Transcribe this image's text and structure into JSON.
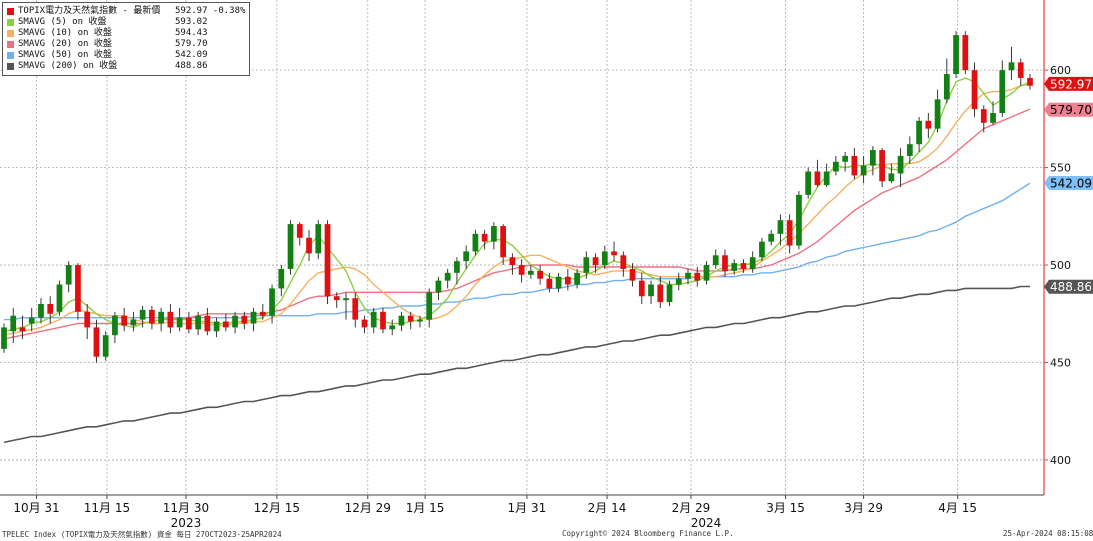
{
  "chart_data": {
    "type": "candlestick",
    "y_axis": {
      "ticks": [
        400,
        450,
        500,
        550,
        600
      ],
      "range": [
        382,
        636
      ],
      "side": "right",
      "grid": true
    },
    "x_axis": {
      "ticks": [
        "10月 31",
        "11月 15",
        "11月 30",
        "12月 15",
        "12月 29",
        "1月 15",
        "1月 31",
        "2月 14",
        "2月 29",
        "3月 15",
        "3月 29",
        "4月 15"
      ],
      "years": [
        "2023",
        "2024"
      ]
    },
    "legend": [
      {
        "label": "TOPIX電力及天然氣指數 - 最新價",
        "value": "592.97  -0.38%",
        "color": "#e01010"
      },
      {
        "label": "SMAVG (5)  on 收盤",
        "value": "593.02",
        "color": "#8cd040"
      },
      {
        "label": "SMAVG (10)  on 收盤",
        "value": "594.43",
        "color": "#f7b060"
      },
      {
        "label": "SMAVG (20)  on 收盤",
        "value": "579.70",
        "color": "#f07080"
      },
      {
        "label": "SMAVG (50)  on 收盤",
        "value": "542.09",
        "color": "#70b0f0"
      },
      {
        "label": "SMAVG (200)  on 收盤",
        "value": "488.86",
        "color": "#555555"
      }
    ],
    "last_value_tags": [
      {
        "text": "592.97",
        "value": 592.97,
        "bg": "#e01010",
        "fg": "#ffffff"
      },
      {
        "text": "579.70",
        "value": 579.7,
        "bg": "#f08090",
        "fg": "#000000"
      },
      {
        "text": "542.09",
        "value": 542.09,
        "bg": "#80c0f8",
        "fg": "#000000"
      },
      {
        "text": "488.86",
        "value": 488.86,
        "bg": "#555555",
        "fg": "#ffffff"
      }
    ],
    "candles": [
      [
        457,
        468,
        455,
        470
      ],
      [
        466,
        474,
        460,
        478
      ],
      [
        468,
        466,
        462,
        474
      ],
      [
        470,
        473,
        466,
        478
      ],
      [
        473,
        480,
        470,
        483
      ],
      [
        480,
        475,
        470,
        484
      ],
      [
        476,
        490,
        474,
        492
      ],
      [
        490,
        500,
        486,
        502
      ],
      [
        500,
        476,
        472,
        501
      ],
      [
        476,
        468,
        462,
        480
      ],
      [
        468,
        453,
        450,
        472
      ],
      [
        453,
        464,
        451,
        466
      ],
      [
        464,
        474,
        460,
        476
      ],
      [
        474,
        469,
        466,
        478
      ],
      [
        469,
        472,
        466,
        476
      ],
      [
        472,
        477,
        468,
        479
      ],
      [
        477,
        470,
        467,
        479
      ],
      [
        470,
        476,
        466,
        478
      ],
      [
        476,
        468,
        465,
        480
      ],
      [
        468,
        473,
        466,
        478
      ],
      [
        473,
        467,
        465,
        476
      ],
      [
        467,
        474,
        464,
        476
      ],
      [
        474,
        466,
        464,
        478
      ],
      [
        466,
        471,
        463,
        473
      ],
      [
        471,
        468,
        466,
        475
      ],
      [
        468,
        474,
        465,
        476
      ],
      [
        474,
        470,
        467,
        476
      ],
      [
        470,
        476,
        466,
        478
      ],
      [
        476,
        474,
        472,
        480
      ],
      [
        474,
        488,
        470,
        490
      ],
      [
        488,
        498,
        484,
        500
      ],
      [
        498,
        521,
        495,
        523
      ],
      [
        521,
        514,
        510,
        522
      ],
      [
        514,
        506,
        502,
        518
      ],
      [
        506,
        521,
        503,
        523
      ],
      [
        521,
        484,
        480,
        523
      ],
      [
        484,
        482,
        478,
        486
      ],
      [
        482,
        483,
        472,
        486
      ],
      [
        483,
        472,
        468,
        486
      ],
      [
        472,
        468,
        465,
        474
      ],
      [
        468,
        476,
        465,
        478
      ],
      [
        476,
        467,
        465,
        478
      ],
      [
        467,
        469,
        464,
        472
      ],
      [
        469,
        474,
        466,
        476
      ],
      [
        474,
        471,
        467,
        476
      ],
      [
        471,
        472,
        468,
        474
      ],
      [
        472,
        486,
        468,
        488
      ],
      [
        486,
        492,
        482,
        494
      ],
      [
        492,
        496,
        488,
        498
      ],
      [
        496,
        502,
        490,
        504
      ],
      [
        502,
        507,
        498,
        510
      ],
      [
        507,
        516,
        505,
        518
      ],
      [
        516,
        512,
        508,
        518
      ],
      [
        512,
        520,
        508,
        522
      ],
      [
        520,
        504,
        500,
        521
      ],
      [
        504,
        500,
        495,
        506
      ],
      [
        500,
        495,
        491,
        503
      ],
      [
        495,
        497,
        493,
        500
      ],
      [
        497,
        493,
        490,
        500
      ],
      [
        493,
        488,
        486,
        496
      ],
      [
        488,
        494,
        486,
        496
      ],
      [
        494,
        490,
        487,
        498
      ],
      [
        490,
        496,
        488,
        498
      ],
      [
        496,
        504,
        493,
        507
      ],
      [
        504,
        500,
        496,
        506
      ],
      [
        500,
        507,
        498,
        510
      ],
      [
        507,
        505,
        502,
        512
      ],
      [
        505,
        498,
        494,
        507
      ],
      [
        498,
        492,
        489,
        501
      ],
      [
        492,
        484,
        480,
        496
      ],
      [
        484,
        490,
        480,
        492
      ],
      [
        490,
        481,
        478,
        494
      ],
      [
        481,
        490,
        479,
        492
      ],
      [
        490,
        493,
        487,
        496
      ],
      [
        493,
        496,
        490,
        498
      ],
      [
        496,
        492,
        489,
        499
      ],
      [
        492,
        500,
        490,
        502
      ],
      [
        500,
        505,
        498,
        508
      ],
      [
        505,
        497,
        494,
        508
      ],
      [
        497,
        501,
        495,
        503
      ],
      [
        501,
        498,
        496,
        503
      ],
      [
        498,
        504,
        496,
        507
      ],
      [
        504,
        512,
        502,
        514
      ],
      [
        512,
        516,
        510,
        518
      ],
      [
        516,
        523,
        510,
        526
      ],
      [
        523,
        510,
        506,
        526
      ],
      [
        510,
        536,
        508,
        538
      ],
      [
        536,
        548,
        534,
        550
      ],
      [
        548,
        541,
        540,
        554
      ],
      [
        541,
        548,
        540,
        552
      ],
      [
        548,
        553,
        546,
        556
      ],
      [
        553,
        556,
        548,
        558
      ],
      [
        556,
        546,
        544,
        560
      ],
      [
        546,
        551,
        542,
        556
      ],
      [
        551,
        559,
        546,
        561
      ],
      [
        559,
        543,
        540,
        560
      ],
      [
        543,
        547,
        542,
        552
      ],
      [
        547,
        556,
        540,
        560
      ],
      [
        556,
        562,
        552,
        566
      ],
      [
        562,
        574,
        558,
        576
      ],
      [
        574,
        570,
        565,
        578
      ],
      [
        570,
        585,
        568,
        590
      ],
      [
        585,
        598,
        583,
        606
      ],
      [
        598,
        618,
        596,
        620
      ],
      [
        618,
        600,
        598,
        620
      ],
      [
        600,
        580,
        576,
        604
      ],
      [
        580,
        573,
        568,
        582
      ],
      [
        573,
        578,
        572,
        584
      ],
      [
        578,
        600,
        576,
        605
      ],
      [
        600,
        604,
        595,
        612
      ],
      [
        604,
        596,
        592,
        606
      ],
      [
        596,
        592,
        590,
        598
      ]
    ],
    "sma5": [
      466,
      467,
      468,
      470,
      471,
      473,
      476,
      481,
      483,
      479,
      475,
      472,
      470,
      469,
      468,
      470,
      471,
      472,
      473,
      472,
      472,
      471,
      471,
      470,
      470,
      471,
      471,
      472,
      473,
      477,
      482,
      491,
      500,
      510,
      515,
      509,
      503,
      497,
      486,
      478,
      473,
      471,
      470,
      470,
      471,
      472,
      474,
      478,
      483,
      491,
      498,
      505,
      511,
      513,
      513,
      510,
      505,
      500,
      497,
      494,
      493,
      493,
      493,
      495,
      497,
      500,
      502,
      501,
      499,
      497,
      494,
      492,
      490,
      490,
      491,
      492,
      494,
      497,
      499,
      500,
      500,
      501,
      503,
      507,
      512,
      516,
      523,
      532,
      540,
      546,
      551,
      550,
      551,
      551,
      552,
      551,
      549,
      549,
      553,
      558,
      563,
      572,
      584,
      594,
      596,
      594,
      588,
      582,
      585,
      588,
      592,
      593
    ],
    "sma10": [
      464,
      465,
      466,
      467,
      468,
      470,
      472,
      475,
      477,
      476,
      475,
      474,
      474,
      474,
      472,
      471,
      470,
      470,
      471,
      470,
      470,
      470,
      470,
      469,
      469,
      470,
      470,
      471,
      471,
      473,
      475,
      480,
      486,
      492,
      496,
      497,
      498,
      499,
      498,
      495,
      490,
      486,
      482,
      478,
      475,
      473,
      472,
      473,
      475,
      479,
      484,
      490,
      495,
      499,
      502,
      503,
      504,
      505,
      505,
      503,
      501,
      499,
      497,
      496,
      495,
      496,
      497,
      497,
      497,
      496,
      495,
      494,
      494,
      494,
      494,
      494,
      494,
      494,
      495,
      496,
      497,
      499,
      502,
      505,
      508,
      512,
      516,
      521,
      526,
      531,
      535,
      540,
      544,
      547,
      549,
      551,
      552,
      552,
      552,
      553,
      556,
      560,
      566,
      573,
      579,
      584,
      588,
      589,
      589,
      590,
      592,
      594
    ],
    "sma20": [
      462,
      463,
      464,
      465,
      466,
      467,
      468,
      469,
      470,
      470,
      470,
      470,
      470,
      470,
      470,
      470,
      471,
      472,
      472,
      472,
      473,
      474,
      475,
      475,
      475,
      475,
      475,
      475,
      475,
      476,
      477,
      479,
      481,
      483,
      484,
      484,
      485,
      486,
      486,
      486,
      486,
      486,
      486,
      486,
      486,
      486,
      486,
      486,
      487,
      488,
      490,
      492,
      494,
      496,
      497,
      498,
      499,
      500,
      500,
      500,
      500,
      500,
      499,
      499,
      499,
      499,
      499,
      499,
      499,
      499,
      499,
      499,
      499,
      499,
      498,
      497,
      497,
      497,
      497,
      498,
      498,
      498,
      499,
      500,
      502,
      504,
      506,
      509,
      512,
      516,
      520,
      524,
      528,
      531,
      534,
      537,
      539,
      541,
      543,
      545,
      548,
      551,
      554,
      558,
      562,
      566,
      570,
      572,
      574,
      576,
      578,
      580
    ],
    "sma50": [
      472,
      472,
      473,
      473,
      473,
      473,
      473,
      473,
      473,
      473,
      473,
      473,
      473,
      473,
      473,
      473,
      473,
      473,
      473,
      473,
      473,
      473,
      473,
      473,
      473,
      473,
      473,
      474,
      474,
      474,
      474,
      474,
      474,
      474,
      475,
      475,
      475,
      476,
      476,
      477,
      477,
      478,
      478,
      479,
      479,
      479,
      480,
      480,
      481,
      481,
      482,
      483,
      483,
      484,
      485,
      485,
      486,
      486,
      487,
      488,
      488,
      489,
      490,
      490,
      491,
      491,
      492,
      492,
      493,
      493,
      493,
      493,
      493,
      493,
      493,
      494,
      494,
      494,
      494,
      494,
      495,
      495,
      496,
      496,
      497,
      498,
      499,
      501,
      502,
      504,
      505,
      507,
      508,
      509,
      510,
      511,
      512,
      513,
      514,
      515,
      517,
      518,
      520,
      522,
      525,
      527,
      529,
      531,
      533,
      536,
      539,
      542
    ],
    "sma200": [
      409,
      410,
      411,
      412,
      412,
      413,
      414,
      415,
      416,
      417,
      417,
      418,
      419,
      420,
      420,
      421,
      422,
      423,
      424,
      424,
      425,
      426,
      427,
      427,
      428,
      429,
      430,
      430,
      431,
      432,
      433,
      433,
      434,
      435,
      435,
      436,
      437,
      438,
      438,
      439,
      440,
      441,
      441,
      442,
      443,
      444,
      444,
      445,
      446,
      447,
      447,
      448,
      449,
      450,
      451,
      451,
      452,
      453,
      454,
      454,
      455,
      456,
      457,
      458,
      458,
      459,
      460,
      461,
      461,
      462,
      463,
      464,
      464,
      465,
      466,
      467,
      468,
      468,
      469,
      470,
      470,
      471,
      472,
      473,
      473,
      474,
      475,
      476,
      476,
      477,
      478,
      479,
      479,
      480,
      481,
      482,
      483,
      483,
      484,
      485,
      485,
      486,
      487,
      487,
      488,
      488,
      488,
      488,
      488,
      488,
      489,
      489
    ]
  },
  "footer": {
    "left": "TPELEC Index (TOPIX電力及天然氣指數) 資金  每日 27OCT2023-25APR2024",
    "center": "Copyright© 2024 Bloomberg Finance L.P.",
    "right": "25-Apr-2024 08:15:08"
  }
}
